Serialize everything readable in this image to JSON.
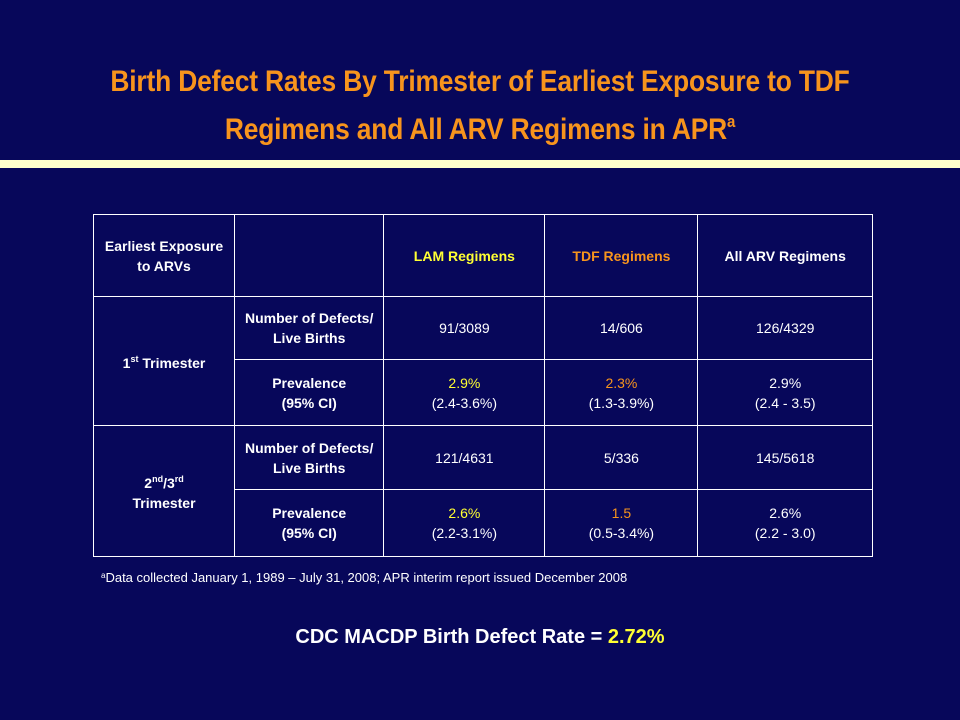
{
  "title": {
    "line1": "Birth Defect Rates By Trimester of Earliest Exposure to TDF",
    "line2": "Regimens and All ARV Regimens in APR",
    "superscript": "a"
  },
  "table": {
    "header": {
      "exposure": "Earliest Exposure to ARVs",
      "lam": "LAM Regimens",
      "tdf": "TDF Regimens",
      "all": "All ARV Regimens"
    },
    "groups": [
      {
        "label_main": "1",
        "label_sup": "st",
        "label_rest": " Trimester",
        "rows": [
          {
            "metric": "Number of Defects/ Live Births",
            "lam": "91/3089",
            "tdf": "14/606",
            "all": "126/4329"
          },
          {
            "metric_line1": "Prevalence",
            "metric_line2": "(95% CI)",
            "lam_value": "2.9%",
            "lam_ci": "(2.4-3.6%)",
            "tdf_value": "2.3%",
            "tdf_ci": "(1.3-3.9%)",
            "all_value": "2.9%",
            "all_ci": "(2.4 - 3.5)"
          }
        ]
      },
      {
        "label_a": "2",
        "label_a_sup": "nd",
        "label_b": "/3",
        "label_b_sup": "rd",
        "label_c": "Trimester",
        "rows": [
          {
            "metric": "Number of Defects/ Live Births",
            "lam": "121/4631",
            "tdf": "5/336",
            "all": "145/5618"
          },
          {
            "metric_line1": "Prevalence",
            "metric_line2": "(95% CI)",
            "lam_value": "2.6%",
            "lam_ci": "(2.2-3.1%)",
            "tdf_value": "1.5",
            "tdf_ci": "(0.5-3.4%)",
            "all_value": "2.6%",
            "all_ci": "(2.2 - 3.0)"
          }
        ]
      }
    ]
  },
  "footnote": {
    "marker": "a",
    "text": "Data collected January 1, 1989 – July 31, 2008; APR interim report issued December 2008"
  },
  "rate": {
    "label": "CDC MACDP Birth Defect Rate = ",
    "value": "2.72%"
  },
  "colors": {
    "background": "#07075a",
    "title": "#f7941d",
    "highlight_yellow": "#ffff33",
    "highlight_orange": "#f7941d",
    "rule": "#ffffcc"
  }
}
